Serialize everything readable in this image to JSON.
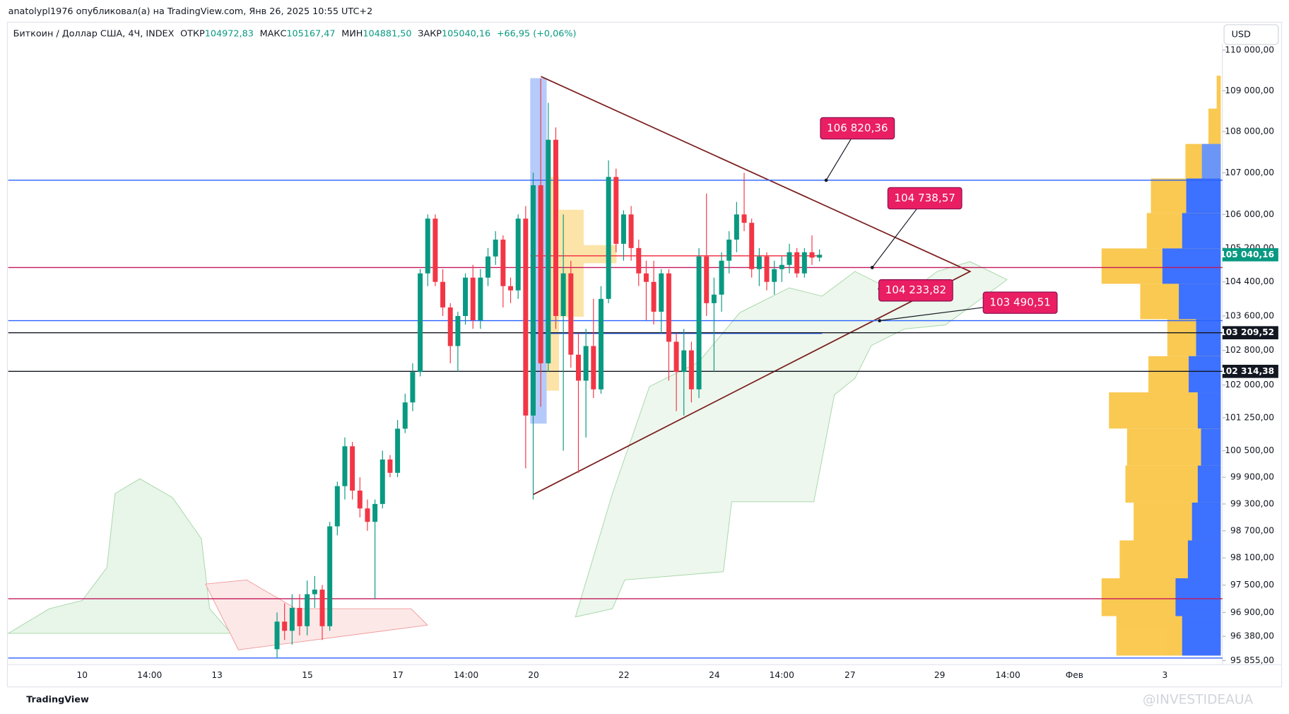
{
  "header": {
    "publisher": "anatolypl1976 опубликовал(а) на TradingView.com, Янв 26, 2025 10:55 UTC+2"
  },
  "legend": {
    "symbol": "Биткоин / Доллар США, 4Ч, INDEX",
    "open_label": "ОТКР",
    "open": "104972,83",
    "high_label": "МАКС",
    "high": "105167,47",
    "low_label": "МИН",
    "low": "104881,50",
    "close_label": "ЗАКР",
    "close": "105040,16",
    "change": "+66,95 (+0,06%)"
  },
  "currency_button": "USD",
  "footer": {
    "brand": "TradingView",
    "watermark": "@INVESTIDEAUA"
  },
  "chart_data": {
    "type": "candlestick",
    "log_scale": true,
    "up_color": "#089981",
    "down_color": "#f23645",
    "ylim": [
      95855,
      110000
    ],
    "yticks": [
      {
        "value": 110000,
        "label": "110 000,00"
      },
      {
        "value": 109000,
        "label": "109 000,00"
      },
      {
        "value": 108000,
        "label": "108 000,00"
      },
      {
        "value": 107000,
        "label": "107 000,00"
      },
      {
        "value": 106000,
        "label": "106 000,00"
      },
      {
        "value": 105200,
        "label": "105 200,00"
      },
      {
        "value": 104400,
        "label": "104 400,00"
      },
      {
        "value": 103600,
        "label": "103 600,00"
      },
      {
        "value": 102800,
        "label": "102 800,00"
      },
      {
        "value": 102000,
        "label": "102 000,00"
      },
      {
        "value": 101250,
        "label": "101 250,00"
      },
      {
        "value": 100500,
        "label": "100 500,00"
      },
      {
        "value": 99900,
        "label": "99 900,00"
      },
      {
        "value": 99300,
        "label": "99 300,00"
      },
      {
        "value": 98700,
        "label": "98 700,00"
      },
      {
        "value": 98100,
        "label": "98 100,00"
      },
      {
        "value": 97500,
        "label": "97 500,00"
      },
      {
        "value": 96900,
        "label": "96 900,00"
      },
      {
        "value": 96380,
        "label": "96 380,00"
      },
      {
        "value": 95855,
        "label": "95 855,00"
      }
    ],
    "x_labels": [
      "10",
      "14:00",
      "13",
      "15",
      "17",
      "14:00",
      "20",
      "22",
      "24",
      "14:00",
      "27",
      "29",
      "14:00",
      "Фев",
      "3"
    ],
    "candles": [
      [
        96100,
        96900,
        95900,
        96700
      ],
      [
        96700,
        97100,
        96300,
        96500
      ],
      [
        96500,
        97300,
        96200,
        97000
      ],
      [
        97000,
        97300,
        96400,
        96600
      ],
      [
        96600,
        97600,
        96400,
        97300
      ],
      [
        97300,
        97700,
        97000,
        97400
      ],
      [
        97400,
        97500,
        96300,
        96600
      ],
      [
        96600,
        98900,
        96500,
        98800
      ],
      [
        98800,
        99800,
        98600,
        99700
      ],
      [
        99700,
        100800,
        99400,
        100600
      ],
      [
        100600,
        100700,
        99400,
        99600
      ],
      [
        99600,
        99900,
        99000,
        99200
      ],
      [
        99200,
        99400,
        98700,
        98900
      ],
      [
        98900,
        99400,
        97200,
        99300
      ],
      [
        99300,
        100500,
        99200,
        100300
      ],
      [
        100300,
        100400,
        99900,
        100000
      ],
      [
        100000,
        101200,
        99900,
        101000
      ],
      [
        101000,
        101800,
        100900,
        101600
      ],
      [
        101600,
        102500,
        101400,
        102300
      ],
      [
        102300,
        104700,
        102200,
        104600
      ],
      [
        104600,
        106000,
        104300,
        105900
      ],
      [
        105900,
        106000,
        104300,
        104400
      ],
      [
        104400,
        104700,
        103600,
        103800
      ],
      [
        103800,
        103900,
        102500,
        102900
      ],
      [
        102900,
        103700,
        102300,
        103600
      ],
      [
        103600,
        104600,
        103400,
        104500
      ],
      [
        104500,
        104800,
        103300,
        103500
      ],
      [
        103500,
        104700,
        103300,
        104500
      ],
      [
        104500,
        105200,
        104300,
        105000
      ],
      [
        105000,
        105600,
        104800,
        105400
      ],
      [
        105400,
        105500,
        103800,
        104300
      ],
      [
        104300,
        104500,
        103900,
        104200
      ],
      [
        104200,
        106000,
        104000,
        105900
      ],
      [
        105900,
        106200,
        100100,
        101300
      ],
      [
        101300,
        107000,
        99400,
        106700
      ],
      [
        106700,
        109300,
        101500,
        102500
      ],
      [
        102500,
        108700,
        102300,
        107800
      ],
      [
        107800,
        108100,
        103300,
        103600
      ],
      [
        103600,
        106000,
        100500,
        104600
      ],
      [
        104600,
        104900,
        102400,
        102700
      ],
      [
        102700,
        103200,
        100000,
        102100
      ],
      [
        102100,
        103300,
        100800,
        102900
      ],
      [
        102900,
        104000,
        101700,
        101900
      ],
      [
        101900,
        104300,
        101800,
        104000
      ],
      [
        104000,
        107300,
        103900,
        106900
      ],
      [
        106900,
        107100,
        105100,
        105300
      ],
      [
        105300,
        106100,
        104900,
        106000
      ],
      [
        106000,
        106200,
        104900,
        105200
      ],
      [
        105200,
        105400,
        104300,
        104600
      ],
      [
        104600,
        104900,
        103500,
        104400
      ],
      [
        104400,
        104900,
        103400,
        103700
      ],
      [
        103700,
        104700,
        103200,
        104600
      ],
      [
        104600,
        104700,
        102100,
        103000
      ],
      [
        103000,
        103200,
        101400,
        102300
      ],
      [
        102300,
        103300,
        101300,
        102800
      ],
      [
        102800,
        103000,
        101600,
        101900
      ],
      [
        101900,
        105200,
        101700,
        105000
      ],
      [
        105000,
        106500,
        103600,
        103900
      ],
      [
        103900,
        104500,
        102300,
        104100
      ],
      [
        104100,
        105100,
        103700,
        104900
      ],
      [
        104900,
        105600,
        104600,
        105400
      ],
      [
        105400,
        106300,
        105100,
        106000
      ],
      [
        106000,
        107000,
        105600,
        105800
      ],
      [
        105800,
        105900,
        104500,
        104700
      ],
      [
        104700,
        105200,
        104300,
        105000
      ],
      [
        105000,
        105100,
        104200,
        104400
      ],
      [
        104400,
        104900,
        104100,
        104700
      ],
      [
        104700,
        105000,
        104400,
        104800
      ],
      [
        104800,
        105300,
        104600,
        105100
      ],
      [
        105100,
        105200,
        104500,
        104600
      ],
      [
        104600,
        105200,
        104500,
        105100
      ],
      [
        105100,
        105500,
        104800,
        104972.83
      ],
      [
        104972.83,
        105167.47,
        104881.5,
        105040.16
      ]
    ],
    "levels": [
      {
        "value": 106820.36,
        "color": "#2962ff"
      },
      {
        "value": 104738.57,
        "color": "#c2185b"
      },
      {
        "value": 103490.51,
        "color": "#2962ff"
      },
      {
        "value": 103209.52,
        "color": "#131722"
      },
      {
        "value": 102314.38,
        "color": "#131722"
      },
      {
        "value": 97200,
        "color": "#c2185b"
      },
      {
        "value": 95910,
        "color": "#2962ff"
      }
    ],
    "price_labels": [
      {
        "value": 105040.16,
        "label": "105 040,16",
        "color": "#089981"
      },
      {
        "value": 103209.52,
        "label": "103 209,52",
        "color": "#131722"
      },
      {
        "value": 102314.38,
        "label": "102 314,38",
        "color": "#131722"
      }
    ],
    "annotations": [
      {
        "value": 106820.36,
        "label": "106 820,36"
      },
      {
        "value": 104738.57,
        "label": "104 738,57"
      },
      {
        "value": 104233.82,
        "label": "104 233,82"
      },
      {
        "value": 103490.51,
        "label": "103 490,51"
      }
    ]
  }
}
